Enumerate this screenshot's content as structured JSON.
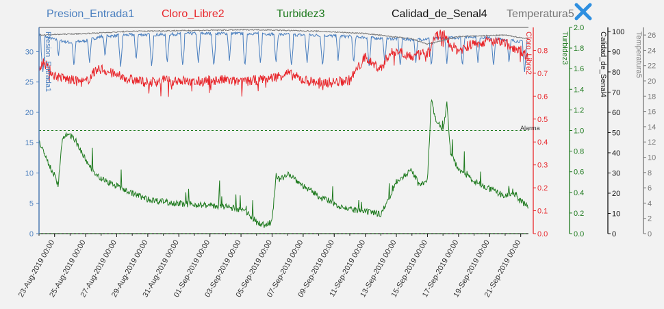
{
  "legend": [
    {
      "label": "Presion_Entrada1",
      "color": "#4a7fbf"
    },
    {
      "label": "Cloro_Libre2",
      "color": "#e8262b"
    },
    {
      "label": "Turbidez3",
      "color": "#1e7a1e"
    },
    {
      "label": "Calidad_de_Senal4",
      "color": "#111111"
    },
    {
      "label": "Temperatura5",
      "color": "#777777"
    }
  ],
  "close_icon": "close-x-icon",
  "alarm_label": "Alarma",
  "chart_data": {
    "type": "line",
    "x_range": [
      "2019-08-22",
      "2019-09-22T12:00"
    ],
    "x_ticks": [
      "23-Aug-2019 00:00",
      "25-Aug-2019 00:00",
      "27-Aug-2019 00:00",
      "29-Aug-2019 00:00",
      "31-Aug-2019 00:00",
      "01-Sep-2019 00:00",
      "03-Sep-2019 00:00",
      "05-Sep-2019 00:00",
      "07-Sep-2019 00:00",
      "09-Sep-2019 00:00",
      "11-Sep-2019 00:00",
      "13-Sep-2019 00:00",
      "15-Sep-2019 00:00",
      "17-Sep-2019 00:00",
      "19-Sep-2019 00:00",
      "21-Sep-2019 00:00"
    ],
    "axes": [
      {
        "id": "presion",
        "label": "Presion_Entrada1",
        "color": "#4a7fbf",
        "min": 0,
        "max": 34,
        "ticks": [
          0,
          5,
          10,
          15,
          20,
          25,
          30
        ]
      },
      {
        "id": "cloro",
        "label": "Cloro_Libre2",
        "color": "#e8262b",
        "min": 0,
        "max": 0.9,
        "ticks": [
          0.0,
          0.1,
          0.2,
          0.3,
          0.4,
          0.5,
          0.6,
          0.7,
          0.8
        ]
      },
      {
        "id": "turbidez",
        "label": "Turbidez3",
        "color": "#1e7a1e",
        "min": 0,
        "max": 2.0,
        "ticks": [
          0.0,
          0.2,
          0.4,
          0.6,
          0.8,
          1.0,
          1.2,
          1.4,
          1.6,
          1.8,
          2.0
        ]
      },
      {
        "id": "calidad",
        "label": "Calidad_de_Senal4",
        "color": "#111111",
        "min": 0,
        "max": 102,
        "ticks": [
          0,
          10,
          20,
          30,
          40,
          50,
          60,
          70,
          80,
          90,
          100
        ]
      },
      {
        "id": "temp",
        "label": "Temperatura5",
        "color": "#777777",
        "min": 0,
        "max": 27,
        "ticks": [
          0,
          2,
          4,
          6,
          8,
          10,
          12,
          14,
          16,
          18,
          20,
          22,
          24,
          26
        ]
      }
    ],
    "alarm": {
      "value": 1.0,
      "axis": "turbidez"
    },
    "baseline": {
      "value": 0.0,
      "axis": "turbidez"
    },
    "series": [
      {
        "name": "Presion_Entrada1",
        "axis": "presion",
        "color": "#4a7fbf",
        "points": [
          [
            "2019-08-22",
            32.8
          ],
          [
            "2019-08-23",
            32.0
          ],
          [
            "2019-08-24",
            31.5
          ],
          [
            "2019-08-25",
            31.8
          ],
          [
            "2019-08-26",
            32.5
          ],
          [
            "2019-08-28",
            32.8
          ],
          [
            "2019-08-30",
            32.8
          ],
          [
            "2019-09-01",
            33.0
          ],
          [
            "2019-09-03",
            33.0
          ],
          [
            "2019-09-05",
            33.0
          ],
          [
            "2019-09-07",
            32.8
          ],
          [
            "2019-09-09",
            32.7
          ],
          [
            "2019-09-11",
            32.5
          ],
          [
            "2019-09-13",
            32.2
          ],
          [
            "2019-09-15",
            32.0
          ],
          [
            "2019-09-17",
            32.2
          ],
          [
            "2019-09-19",
            32.5
          ],
          [
            "2019-09-21",
            32.0
          ],
          [
            "2019-09-22T12:00",
            31.5
          ]
        ],
        "dips": [
          [
            "2019-08-22T06:00",
            26.5
          ],
          [
            "2019-08-23T06:00",
            29.0
          ],
          [
            "2019-08-24T06:00",
            27.5
          ],
          [
            "2019-08-25T06:00",
            28.0
          ],
          [
            "2019-08-26T06:00",
            29.0
          ],
          [
            "2019-08-27T06:00",
            27.5
          ],
          [
            "2019-08-28T06:00",
            28.5
          ],
          [
            "2019-08-29T06:00",
            27.5
          ],
          [
            "2019-08-30T06:00",
            28.0
          ],
          [
            "2019-08-31T06:00",
            27.5
          ],
          [
            "2019-09-01T06:00",
            28.0
          ],
          [
            "2019-09-02T06:00",
            27.5
          ],
          [
            "2019-09-03T06:00",
            28.5
          ],
          [
            "2019-09-04T06:00",
            27.5
          ],
          [
            "2019-09-05T06:00",
            28.0
          ],
          [
            "2019-09-06T06:00",
            28.0
          ],
          [
            "2019-09-07T06:00",
            27.5
          ],
          [
            "2019-09-08T06:00",
            28.0
          ],
          [
            "2019-09-09T06:00",
            27.5
          ],
          [
            "2019-09-10T06:00",
            28.5
          ],
          [
            "2019-09-11T06:00",
            28.0
          ],
          [
            "2019-09-12T06:00",
            27.5
          ],
          [
            "2019-09-13T06:00",
            28.0
          ],
          [
            "2019-09-14T06:00",
            27.5
          ],
          [
            "2019-09-15T06:00",
            28.0
          ],
          [
            "2019-09-16T06:00",
            27.5
          ],
          [
            "2019-09-17T06:00",
            28.0
          ],
          [
            "2019-09-18T06:00",
            27.5
          ],
          [
            "2019-09-19T06:00",
            28.0
          ],
          [
            "2019-09-20T06:00",
            27.5
          ],
          [
            "2019-09-21T06:00",
            28.0
          ],
          [
            "2019-09-22T06:00",
            26.5
          ]
        ]
      },
      {
        "name": "Cloro_Libre2",
        "axis": "cloro",
        "color": "#e8262b",
        "points": [
          [
            "2019-08-22",
            0.73
          ],
          [
            "2019-08-22T06:00",
            0.75
          ],
          [
            "2019-08-23",
            0.69
          ],
          [
            "2019-08-24",
            0.67
          ],
          [
            "2019-08-25",
            0.66
          ],
          [
            "2019-08-25T12:00",
            0.7
          ],
          [
            "2019-08-26",
            0.72
          ],
          [
            "2019-08-27",
            0.69
          ],
          [
            "2019-08-28",
            0.67
          ],
          [
            "2019-08-29",
            0.66
          ],
          [
            "2019-08-30",
            0.67
          ],
          [
            "2019-08-31",
            0.67
          ],
          [
            "2019-09-01",
            0.66
          ],
          [
            "2019-09-02",
            0.67
          ],
          [
            "2019-09-03",
            0.67
          ],
          [
            "2019-09-04",
            0.66
          ],
          [
            "2019-09-05",
            0.67
          ],
          [
            "2019-09-06",
            0.68
          ],
          [
            "2019-09-07",
            0.7
          ],
          [
            "2019-09-08",
            0.67
          ],
          [
            "2019-09-09",
            0.66
          ],
          [
            "2019-09-10",
            0.66
          ],
          [
            "2019-09-11",
            0.67
          ],
          [
            "2019-09-11T12:00",
            0.72
          ],
          [
            "2019-09-12",
            0.77
          ],
          [
            "2019-09-12T12:00",
            0.74
          ],
          [
            "2019-09-13",
            0.72
          ],
          [
            "2019-09-13T12:00",
            0.78
          ],
          [
            "2019-09-14",
            0.8
          ],
          [
            "2019-09-14T12:00",
            0.79
          ],
          [
            "2019-09-15",
            0.77
          ],
          [
            "2019-09-16",
            0.79
          ],
          [
            "2019-09-16T12:00",
            0.86
          ],
          [
            "2019-09-17",
            0.88
          ],
          [
            "2019-09-17T12:00",
            0.82
          ],
          [
            "2019-09-18",
            0.8
          ],
          [
            "2019-09-19",
            0.83
          ],
          [
            "2019-09-20",
            0.84
          ],
          [
            "2019-09-21",
            0.83
          ],
          [
            "2019-09-22",
            0.8
          ],
          [
            "2019-09-22T12:00",
            0.77
          ]
        ]
      },
      {
        "name": "Turbidez3",
        "axis": "turbidez",
        "color": "#1e7a1e",
        "points": [
          [
            "2019-08-22",
            0.9
          ],
          [
            "2019-08-22T12:00",
            0.7
          ],
          [
            "2019-08-23",
            0.55
          ],
          [
            "2019-08-23T06:00",
            0.45
          ],
          [
            "2019-08-23T12:00",
            0.92
          ],
          [
            "2019-08-24",
            0.95
          ],
          [
            "2019-08-24T12:00",
            0.85
          ],
          [
            "2019-08-25",
            0.7
          ],
          [
            "2019-08-25T12:00",
            0.6
          ],
          [
            "2019-08-26",
            0.52
          ],
          [
            "2019-08-27",
            0.45
          ],
          [
            "2019-08-28",
            0.38
          ],
          [
            "2019-08-29",
            0.32
          ],
          [
            "2019-08-30",
            0.3
          ],
          [
            "2019-08-31",
            0.28
          ],
          [
            "2019-09-01",
            0.27
          ],
          [
            "2019-09-02",
            0.26
          ],
          [
            "2019-09-03",
            0.25
          ],
          [
            "2019-09-04",
            0.22
          ],
          [
            "2019-09-04T12:00",
            0.18
          ],
          [
            "2019-09-05",
            0.1
          ],
          [
            "2019-09-05T12:00",
            0.07
          ],
          [
            "2019-09-06",
            0.1
          ],
          [
            "2019-09-06T06:00",
            0.55
          ],
          [
            "2019-09-06T12:00",
            0.5
          ],
          [
            "2019-09-07",
            0.58
          ],
          [
            "2019-09-08",
            0.45
          ],
          [
            "2019-09-09",
            0.35
          ],
          [
            "2019-09-10",
            0.28
          ],
          [
            "2019-09-11",
            0.22
          ],
          [
            "2019-09-12",
            0.2
          ],
          [
            "2019-09-13",
            0.18
          ],
          [
            "2019-09-13T12:00",
            0.32
          ],
          [
            "2019-09-14",
            0.5
          ],
          [
            "2019-09-14T12:00",
            0.55
          ],
          [
            "2019-09-15",
            0.6
          ],
          [
            "2019-09-15T12:00",
            0.45
          ],
          [
            "2019-09-16",
            0.5
          ],
          [
            "2019-09-16T06:00",
            1.3
          ],
          [
            "2019-09-16T12:00",
            1.1
          ],
          [
            "2019-09-17",
            1.0
          ],
          [
            "2019-09-17T06:00",
            1.25
          ],
          [
            "2019-09-17T12:00",
            0.75
          ],
          [
            "2019-09-18",
            0.62
          ],
          [
            "2019-09-19",
            0.5
          ],
          [
            "2019-09-20",
            0.42
          ],
          [
            "2019-09-21",
            0.35
          ],
          [
            "2019-09-21T12:00",
            0.4
          ],
          [
            "2019-09-22",
            0.3
          ],
          [
            "2019-09-22T12:00",
            0.25
          ]
        ]
      },
      {
        "name": "Temperatura5",
        "axis": "temp",
        "color": "#777777",
        "points": [
          [
            "2019-08-22",
            26.0
          ],
          [
            "2019-08-25",
            26.2
          ],
          [
            "2019-08-28",
            26.5
          ],
          [
            "2019-09-01",
            26.6
          ],
          [
            "2019-09-05",
            26.7
          ],
          [
            "2019-09-09",
            26.5
          ],
          [
            "2019-09-12",
            26.2
          ],
          [
            "2019-09-15",
            25.5
          ],
          [
            "2019-09-16",
            24.8
          ],
          [
            "2019-09-18",
            25.8
          ],
          [
            "2019-09-21",
            26.0
          ],
          [
            "2019-09-22T12:00",
            25.5
          ]
        ]
      }
    ]
  }
}
